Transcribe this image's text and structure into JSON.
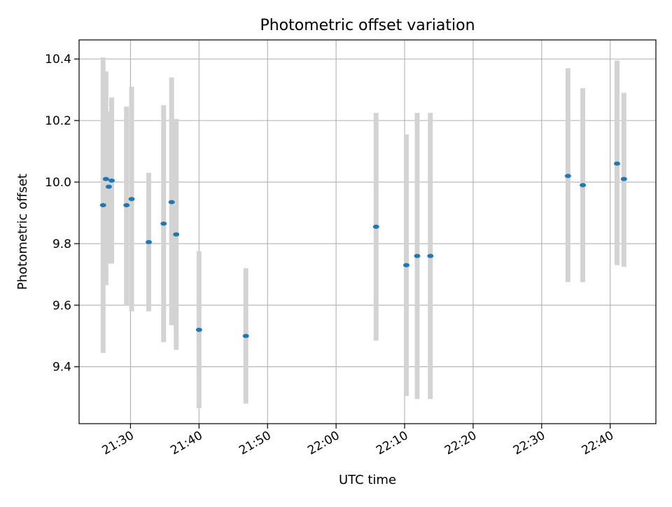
{
  "chart_data": {
    "type": "scatter",
    "title": "Photometric offset variation",
    "xlabel": "UTC time",
    "ylabel": "Photometric offset",
    "xlim": [
      "21:22:30",
      "22:46:40"
    ],
    "ylim": [
      9.215,
      10.462
    ],
    "xticks": [
      "21:30",
      "21:40",
      "21:50",
      "22:00",
      "22:10",
      "22:20",
      "22:30",
      "22:40"
    ],
    "yticks": [
      9.4,
      9.6,
      9.8,
      10.0,
      10.2,
      10.4
    ],
    "grid": true,
    "colors": {
      "points": "#1f77b4",
      "error_bars": "#d3d3d3",
      "grid": "#b0b0b0"
    },
    "series": [
      {
        "points": [
          {
            "x": "21:26:00",
            "y": 9.925,
            "yerr_low": 9.445,
            "yerr_high": 10.405
          },
          {
            "x": "21:26:25",
            "y": 10.01,
            "yerr_low": 9.665,
            "yerr_high": 10.36
          },
          {
            "x": "21:26:50",
            "y": 9.985,
            "yerr_low": 9.735,
            "yerr_high": 10.23
          },
          {
            "x": "21:27:15",
            "y": 10.005,
            "yerr_low": 9.735,
            "yerr_high": 10.275
          },
          {
            "x": "21:29:25",
            "y": 9.925,
            "yerr_low": 9.6,
            "yerr_high": 10.245
          },
          {
            "x": "21:30:10",
            "y": 9.945,
            "yerr_low": 9.58,
            "yerr_high": 10.31
          },
          {
            "x": "21:32:40",
            "y": 9.805,
            "yerr_low": 9.58,
            "yerr_high": 10.03
          },
          {
            "x": "21:34:50",
            "y": 9.865,
            "yerr_low": 9.48,
            "yerr_high": 10.25
          },
          {
            "x": "21:36:00",
            "y": 9.935,
            "yerr_low": 9.535,
            "yerr_high": 10.34
          },
          {
            "x": "21:36:40",
            "y": 9.83,
            "yerr_low": 9.455,
            "yerr_high": 10.205
          },
          {
            "x": "21:40:00",
            "y": 9.52,
            "yerr_low": 9.265,
            "yerr_high": 9.775
          },
          {
            "x": "21:46:50",
            "y": 9.5,
            "yerr_low": 9.28,
            "yerr_high": 9.72
          },
          {
            "x": "22:05:50",
            "y": 9.855,
            "yerr_low": 9.485,
            "yerr_high": 10.225
          },
          {
            "x": "22:10:15",
            "y": 9.73,
            "yerr_low": 9.305,
            "yerr_high": 10.155
          },
          {
            "x": "22:11:50",
            "y": 9.76,
            "yerr_low": 9.295,
            "yerr_high": 10.225
          },
          {
            "x": "22:13:45",
            "y": 9.76,
            "yerr_low": 9.295,
            "yerr_high": 10.225
          },
          {
            "x": "22:33:50",
            "y": 10.02,
            "yerr_low": 9.675,
            "yerr_high": 10.37
          },
          {
            "x": "22:36:00",
            "y": 9.99,
            "yerr_low": 9.675,
            "yerr_high": 10.305
          },
          {
            "x": "22:41:00",
            "y": 10.06,
            "yerr_low": 9.73,
            "yerr_high": 10.395
          },
          {
            "x": "22:42:00",
            "y": 10.01,
            "yerr_low": 9.725,
            "yerr_high": 10.29
          }
        ]
      }
    ]
  }
}
